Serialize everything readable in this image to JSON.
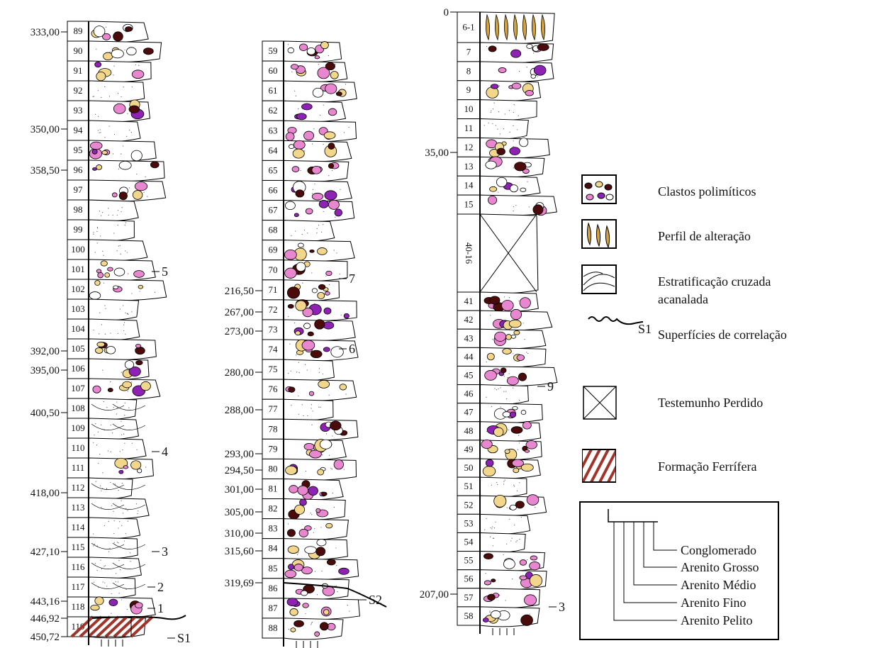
{
  "columns": [
    {
      "layers": [
        "89",
        "90",
        "91",
        "92",
        "93",
        "94",
        "95",
        "96",
        "97",
        "98",
        "99",
        "100",
        "101",
        "102",
        "103",
        "104",
        "105",
        "106",
        "107",
        "108",
        "109",
        "110",
        "111",
        "112",
        "113",
        "114",
        "115",
        "116",
        "117",
        "118",
        "119"
      ],
      "depths": [
        "333,00",
        "350,00",
        "358,50",
        "392,00",
        "395,00",
        "400,50",
        "418,00",
        "427,10",
        "443,16",
        "446,92",
        "450,72"
      ],
      "annotations": [
        "5",
        "4",
        "3",
        "2",
        "1",
        "S1"
      ]
    },
    {
      "layers": [
        "59",
        "60",
        "61",
        "62",
        "63",
        "64",
        "65",
        "66",
        "67",
        "68",
        "69",
        "70",
        "71",
        "72",
        "73",
        "74",
        "75",
        "76",
        "77",
        "78",
        "79",
        "80",
        "81",
        "82",
        "83",
        "84",
        "85",
        "86",
        "87",
        "88"
      ],
      "depths": [
        "216,50",
        "267,00",
        "273,00",
        "280,00",
        "288,00",
        "293,00",
        "294,50",
        "301,00",
        "305,00",
        "310,00",
        "315,60",
        "319,69"
      ],
      "annotations": [
        "7",
        "6",
        "S2"
      ]
    },
    {
      "layers": [
        "6-1",
        "7",
        "8",
        "9",
        "10",
        "11",
        "12",
        "13",
        "14",
        "15",
        "40-16",
        "41",
        "42",
        "43",
        "44",
        "45",
        "46",
        "47",
        "48",
        "49",
        "50",
        "51",
        "52",
        "53",
        "54",
        "55",
        "56",
        "57",
        "58"
      ],
      "depths": [
        "0",
        "35,00",
        "207,00"
      ],
      "annotations": [
        "9",
        "3"
      ]
    }
  ],
  "legend": {
    "items": [
      {
        "label": "Clastos polimíticos"
      },
      {
        "label": "Perfil de alteração"
      },
      {
        "lines": [
          "Estratificação cruzada",
          "acanalada"
        ]
      },
      {
        "symbol": "S1",
        "label": "Superfícies de correlação"
      },
      {
        "label": "Testemunho Perdido"
      },
      {
        "label": "Formação Ferrífera"
      }
    ],
    "grain_sizes": [
      "Conglomerado",
      "Arenito Grosso",
      "Arenito Médio",
      "Arenito Fino",
      "Arenito Pelito"
    ]
  }
}
